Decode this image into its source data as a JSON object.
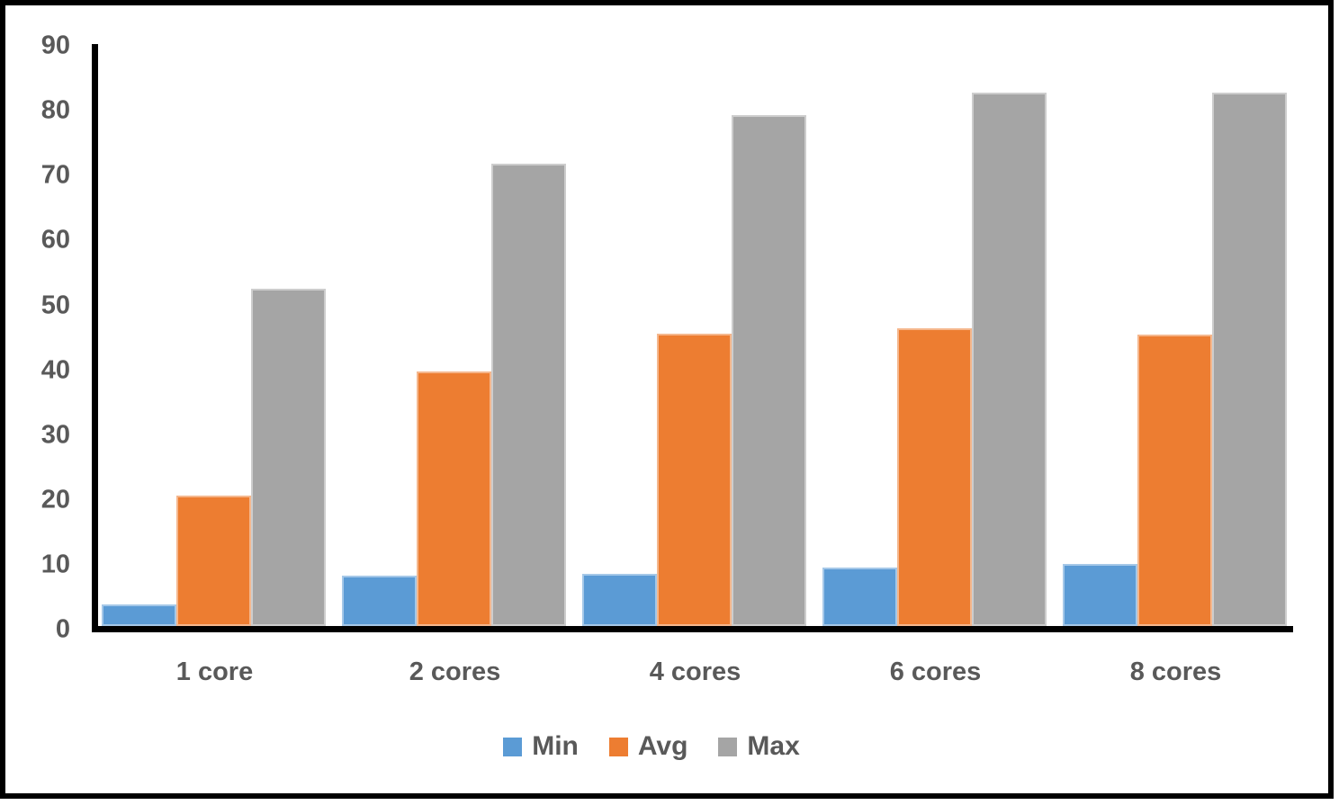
{
  "chart_data": {
    "type": "bar",
    "title": "",
    "xlabel": "",
    "ylabel": "",
    "categories": [
      "1 core",
      "2 cores",
      "4 cores",
      "6 cores",
      "8 cores"
    ],
    "series": [
      {
        "name": "Min",
        "color": "#5B9BD5",
        "values": [
          3.9,
          8.3,
          8.6,
          9.6,
          10.1
        ]
      },
      {
        "name": "Avg",
        "color": "#ED7D31",
        "values": [
          20.7,
          39.8,
          45.6,
          46.4,
          45.5
        ]
      },
      {
        "name": "Max",
        "color": "#A5A5A5",
        "values": [
          52.5,
          71.8,
          79.4,
          82.8,
          82.8
        ]
      }
    ],
    "ylim": [
      0,
      90
    ],
    "ytick_step": 10,
    "yticks": [
      "0",
      "10",
      "20",
      "30",
      "40",
      "50",
      "60",
      "70",
      "80",
      "90"
    ],
    "grid": false,
    "legend_position": "bottom",
    "legend_labels": [
      "Min",
      "Avg",
      "Max"
    ]
  },
  "colors": {
    "background": "#ffffff",
    "frame_border": "#000000",
    "axis_line": "#000000",
    "label_text": "#595959",
    "min_series": "#5B9BD5",
    "avg_series": "#ED7D31",
    "max_series": "#A5A5A5"
  }
}
